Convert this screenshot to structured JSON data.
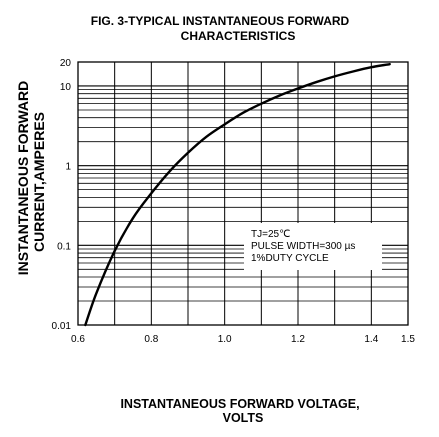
{
  "chart_data": {
    "type": "line",
    "title": [
      "FIG. 3-TYPICAL INSTANTANEOUS FORWARD",
      "CHARACTERISTICS"
    ],
    "xlabel": [
      "INSTANTANEOUS FORWARD VOLTAGE,",
      "VOLTS"
    ],
    "ylabel": [
      "INSTANTANEOUS FORWARD",
      "CURRENT,AMPERES"
    ],
    "x_scale": "linear",
    "y_scale": "log",
    "xlim": [
      0.6,
      1.5
    ],
    "ylim": [
      0.01,
      20
    ],
    "x_ticks": [
      {
        "value": 0.6,
        "label": "0.6"
      },
      {
        "value": 0.8,
        "label": "0.8"
      },
      {
        "value": 1.0,
        "label": "1.0"
      },
      {
        "value": 1.2,
        "label": "1.2"
      },
      {
        "value": 1.4,
        "label": "1.4"
      },
      {
        "value": 1.5,
        "label": "1.5"
      }
    ],
    "y_ticks": [
      {
        "value": 0.01,
        "label": "0.01"
      },
      {
        "value": 0.1,
        "label": "0.1"
      },
      {
        "value": 1,
        "label": "1"
      },
      {
        "value": 10,
        "label": "10"
      },
      {
        "value": 20,
        "label": "20"
      }
    ],
    "grid": true,
    "annotation": [
      "TJ=25℃",
      "PULSE WIDTH=300 µs",
      "1%DUTY CYCLE"
    ],
    "series": [
      {
        "x": [
          0.62,
          0.65,
          0.7,
          0.75,
          0.8,
          0.85,
          0.9,
          0.95,
          1.0,
          1.05,
          1.1,
          1.15,
          1.2,
          1.25,
          1.3,
          1.35,
          1.4,
          1.45
        ],
        "y": [
          0.01,
          0.025,
          0.085,
          0.22,
          0.45,
          0.85,
          1.45,
          2.3,
          3.3,
          4.6,
          6.0,
          7.6,
          9.3,
          11.2,
          13.2,
          15.2,
          17.2,
          18.8
        ]
      }
    ]
  }
}
